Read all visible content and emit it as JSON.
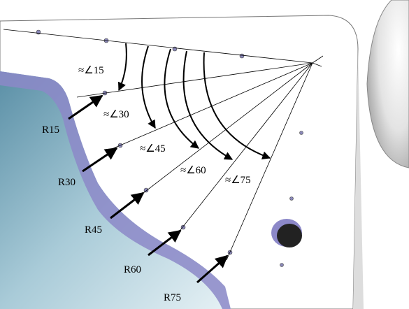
{
  "angle_labels": [
    "≈∠15",
    "≈∠30",
    "≈∠45",
    "≈∠60",
    "≈∠75"
  ],
  "radius_labels": [
    "R15",
    "R30",
    "R45",
    "R60",
    "R75"
  ]
}
